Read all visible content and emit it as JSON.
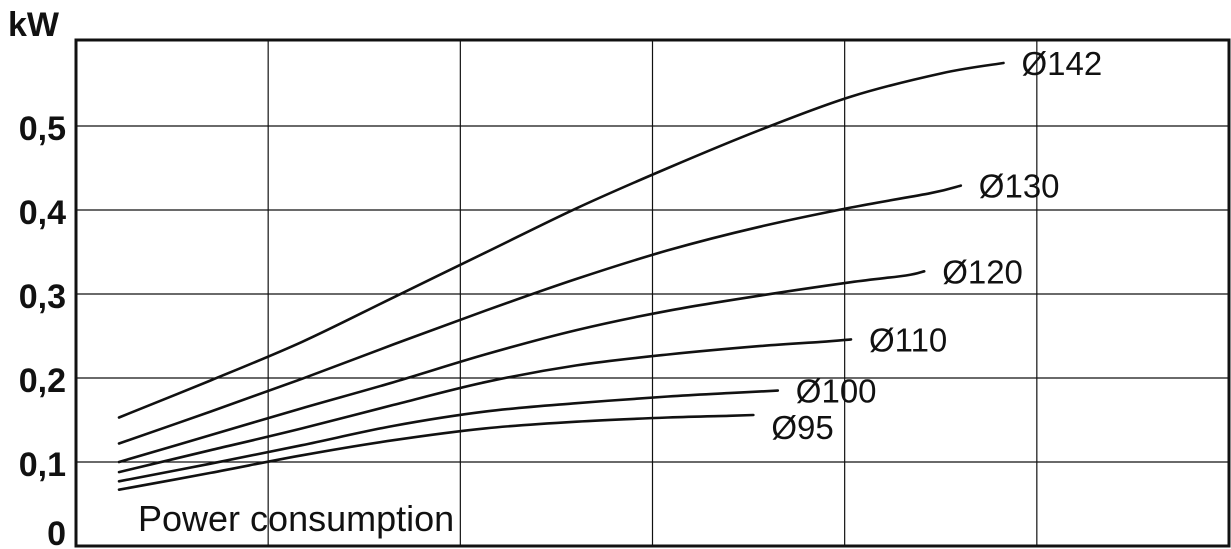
{
  "chart_data": {
    "type": "line",
    "ylabel": "kW",
    "annotation": "Power consumption",
    "ylim": [
      0,
      0.6
    ],
    "y_ticks": [
      {
        "value": 0.5,
        "label": "0,5"
      },
      {
        "value": 0.4,
        "label": "0,4"
      },
      {
        "value": 0.3,
        "label": "0,3"
      },
      {
        "value": 0.2,
        "label": "0,2"
      },
      {
        "value": 0.1,
        "label": "0,1"
      },
      {
        "value": 0.0,
        "label": "0"
      }
    ],
    "x_tick_labels_shown": false,
    "x_gridlines": 5,
    "series": [
      {
        "name": "Ø142",
        "points": [
          [
            0.0,
            0.153
          ],
          [
            0.15,
            0.197
          ],
          [
            0.3,
            0.243
          ],
          [
            0.45,
            0.296
          ],
          [
            0.6,
            0.349
          ],
          [
            0.75,
            0.402
          ],
          [
            0.9,
            0.45
          ],
          [
            1.05,
            0.495
          ],
          [
            1.2,
            0.535
          ],
          [
            1.35,
            0.563
          ],
          [
            1.45,
            0.575
          ]
        ]
      },
      {
        "name": "Ø130",
        "points": [
          [
            0.0,
            0.122
          ],
          [
            0.15,
            0.16
          ],
          [
            0.3,
            0.199
          ],
          [
            0.45,
            0.24
          ],
          [
            0.6,
            0.28
          ],
          [
            0.75,
            0.318
          ],
          [
            0.9,
            0.352
          ],
          [
            1.05,
            0.38
          ],
          [
            1.2,
            0.403
          ],
          [
            1.33,
            0.42
          ],
          [
            1.38,
            0.429
          ]
        ]
      },
      {
        "name": "Ø120",
        "points": [
          [
            0.0,
            0.1
          ],
          [
            0.15,
            0.132
          ],
          [
            0.3,
            0.164
          ],
          [
            0.45,
            0.195
          ],
          [
            0.6,
            0.228
          ],
          [
            0.75,
            0.257
          ],
          [
            0.9,
            0.28
          ],
          [
            1.05,
            0.298
          ],
          [
            1.2,
            0.314
          ],
          [
            1.29,
            0.322
          ],
          [
            1.32,
            0.327
          ]
        ]
      },
      {
        "name": "Ø110",
        "points": [
          [
            0.0,
            0.088
          ],
          [
            0.15,
            0.114
          ],
          [
            0.3,
            0.14
          ],
          [
            0.45,
            0.168
          ],
          [
            0.6,
            0.195
          ],
          [
            0.75,
            0.215
          ],
          [
            0.9,
            0.228
          ],
          [
            1.05,
            0.238
          ],
          [
            1.15,
            0.243
          ],
          [
            1.2,
            0.246
          ]
        ]
      },
      {
        "name": "Ø100",
        "points": [
          [
            0.0,
            0.077
          ],
          [
            0.15,
            0.098
          ],
          [
            0.3,
            0.12
          ],
          [
            0.45,
            0.143
          ],
          [
            0.6,
            0.16
          ],
          [
            0.75,
            0.17
          ],
          [
            0.9,
            0.178
          ],
          [
            1.0,
            0.182
          ],
          [
            1.08,
            0.185
          ]
        ]
      },
      {
        "name": "Ø95",
        "points": [
          [
            0.0,
            0.067
          ],
          [
            0.15,
            0.087
          ],
          [
            0.3,
            0.108
          ],
          [
            0.45,
            0.126
          ],
          [
            0.6,
            0.14
          ],
          [
            0.75,
            0.148
          ],
          [
            0.9,
            0.153
          ],
          [
            1.0,
            0.155
          ],
          [
            1.04,
            0.156
          ]
        ]
      }
    ]
  }
}
